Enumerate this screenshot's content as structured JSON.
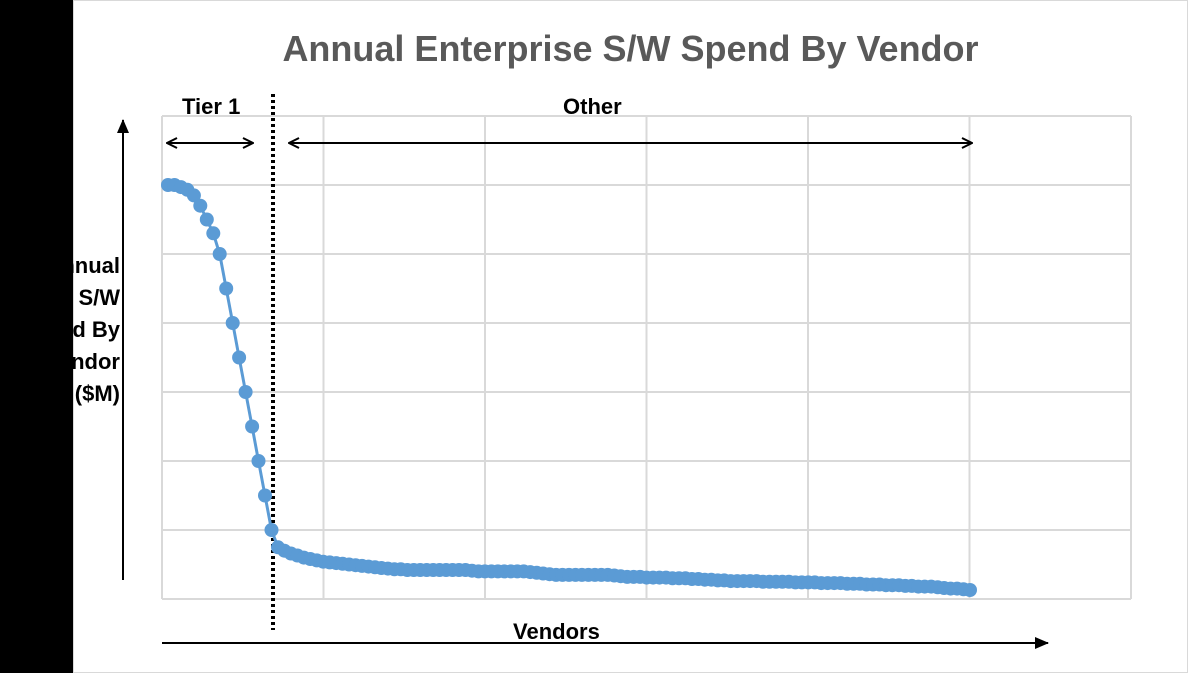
{
  "chart_data": {
    "type": "line",
    "title": "Annual Enterprise S/W Spend By Vendor",
    "xlabel": "Vendors",
    "ylabel_lines": [
      "Annual",
      "S/W",
      "Spend By",
      "Vendor",
      "($M)"
    ],
    "grid": true,
    "series_color": "#5b9bd5",
    "x_count": 125,
    "ylim": [
      0,
      6
    ],
    "y": [
      6.0,
      6.0,
      5.97,
      5.93,
      5.85,
      5.7,
      5.5,
      5.3,
      5.0,
      4.5,
      4.0,
      3.5,
      3.0,
      2.5,
      2.0,
      1.5,
      1.0,
      0.75,
      0.7,
      0.66,
      0.63,
      0.6,
      0.58,
      0.56,
      0.54,
      0.53,
      0.52,
      0.51,
      0.5,
      0.49,
      0.48,
      0.47,
      0.46,
      0.45,
      0.44,
      0.43,
      0.43,
      0.42,
      0.42,
      0.42,
      0.42,
      0.42,
      0.42,
      0.42,
      0.42,
      0.42,
      0.42,
      0.41,
      0.4,
      0.4,
      0.4,
      0.4,
      0.4,
      0.4,
      0.4,
      0.4,
      0.39,
      0.38,
      0.37,
      0.36,
      0.35,
      0.35,
      0.35,
      0.35,
      0.35,
      0.35,
      0.35,
      0.35,
      0.35,
      0.34,
      0.33,
      0.32,
      0.32,
      0.32,
      0.31,
      0.31,
      0.31,
      0.31,
      0.3,
      0.3,
      0.3,
      0.29,
      0.29,
      0.28,
      0.28,
      0.27,
      0.27,
      0.26,
      0.26,
      0.26,
      0.26,
      0.26,
      0.25,
      0.25,
      0.25,
      0.25,
      0.25,
      0.24,
      0.24,
      0.24,
      0.24,
      0.23,
      0.23,
      0.23,
      0.23,
      0.22,
      0.22,
      0.22,
      0.21,
      0.21,
      0.21,
      0.2,
      0.2,
      0.2,
      0.19,
      0.19,
      0.18,
      0.18,
      0.18,
      0.17,
      0.16,
      0.15,
      0.15,
      0.14,
      0.13
    ],
    "annotations": [
      {
        "label": "Tier 1",
        "x_from": 1,
        "x_to": 14
      },
      {
        "label": "Other",
        "x_from": 18,
        "x_to": 125
      }
    ],
    "divider_after_x": 17
  }
}
